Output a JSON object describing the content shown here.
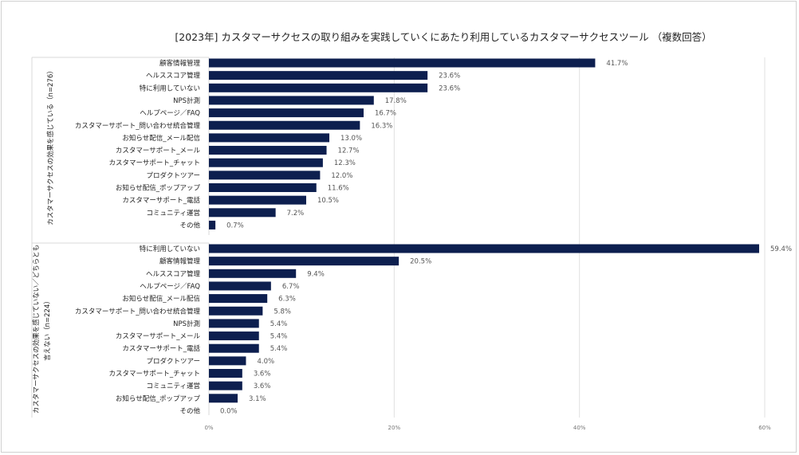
{
  "chart_data": {
    "type": "bar",
    "orientation": "horizontal",
    "title": "[2023年] カスタマーサクセスの取り組みを実践していくにあたり利用しているカスタマーサクセスツール （複数回答）",
    "xlabel": "",
    "ylabel": "",
    "xlim": [
      0,
      60
    ],
    "x_ticks": [
      "0%",
      "20%",
      "40%",
      "60%"
    ],
    "x_tick_values": [
      0,
      20,
      40,
      60
    ],
    "grid": true,
    "bar_color": "#0d1f4f",
    "groups": [
      {
        "name": "カスタマーサクセスの効果を感じている（n=276）",
        "name_lines": [
          "カスタマーサクセスの効果を感じている（n=276）"
        ],
        "categories": [
          "顧客情報管理",
          "ヘルススコア管理",
          "特に利用していない",
          "NPS計測",
          "ヘルプページ／FAQ",
          "カスタマーサポート_問い合わせ統合管理",
          "お知らせ配信_メール配信",
          "カスタマーサポート_メール",
          "カスタマーサポート_チャット",
          "プロダクトツアー",
          "お知らせ配信_ポップアップ",
          "カスタマーサポート_電話",
          "コミュニティ運営",
          "その他"
        ],
        "values": [
          41.7,
          23.6,
          23.6,
          17.8,
          16.7,
          16.3,
          13.0,
          12.7,
          12.3,
          12.0,
          11.6,
          10.5,
          7.2,
          0.7
        ],
        "value_labels": [
          "41.7%",
          "23.6%",
          "23.6%",
          "17.8%",
          "16.7%",
          "16.3%",
          "13.0%",
          "12.7%",
          "12.3%",
          "12.0%",
          "11.6%",
          "10.5%",
          "7.2%",
          "0.7%"
        ]
      },
      {
        "name": "カスタマーサクセスの効果を感じていない／どちらとも言えない（n=224）",
        "name_lines": [
          "カスタマーサクセスの効果を感じていない／どちらとも",
          "言えない（n=224）"
        ],
        "categories": [
          "特に利用していない",
          "顧客情報管理",
          "ヘルススコア管理",
          "ヘルプページ／FAQ",
          "お知らせ配信_メール配信",
          "カスタマーサポート_問い合わせ統合管理",
          "NPS計測",
          "カスタマーサポート_メール",
          "カスタマーサポート_電話",
          "プロダクトツアー",
          "カスタマーサポート_チャット",
          "コミュニティ運営",
          "お知らせ配信_ポップアップ",
          "その他"
        ],
        "values": [
          59.4,
          20.5,
          9.4,
          6.7,
          6.3,
          5.8,
          5.4,
          5.4,
          5.4,
          4.0,
          3.6,
          3.6,
          3.1,
          0.0
        ],
        "value_labels": [
          "59.4%",
          "20.5%",
          "9.4%",
          "6.7%",
          "6.3%",
          "5.8%",
          "5.4%",
          "5.4%",
          "5.4%",
          "4.0%",
          "3.6%",
          "3.6%",
          "3.1%",
          "0.0%"
        ]
      }
    ]
  }
}
